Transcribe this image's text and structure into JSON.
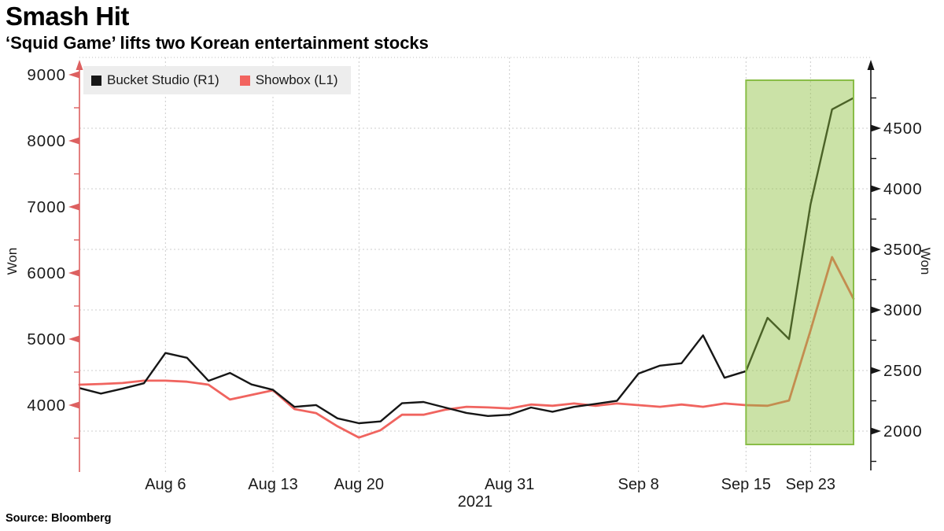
{
  "header": {
    "title": "Smash Hit",
    "subtitle": "‘Squid Game’ lifts two Korean entertainment stocks"
  },
  "source": "Source: Bloomberg",
  "legend": {
    "items": [
      {
        "label": "Bucket Studio (R1)",
        "color": "#161616"
      },
      {
        "label": "Showbox (L1)",
        "color": "#f2645f"
      }
    ]
  },
  "axes": {
    "left_label": "Won",
    "right_label": "Won",
    "year_label": "2021"
  },
  "colors": {
    "bucket_line": "#161616",
    "showbox_line": "#f0645f",
    "left_axis": "#dd6060",
    "right_axis": "#161616",
    "grid": "#cccccc",
    "frame_dotted": "#bdbdbd",
    "highlight_fill": "rgba(140,190,60,0.45)",
    "highlight_border": "#89bd47",
    "tick_text": "#1a1a1a",
    "legend_bg": "#ededed"
  },
  "chart_data": {
    "type": "line",
    "title": "Smash Hit",
    "subtitle": "‘Squid Game’ lifts two Korean entertainment stocks",
    "x": [
      "Aug 2",
      "Aug 3",
      "Aug 4",
      "Aug 5",
      "Aug 6",
      "Aug 9",
      "Aug 10",
      "Aug 11",
      "Aug 12",
      "Aug 13",
      "Aug 17",
      "Aug 18",
      "Aug 19",
      "Aug 20",
      "Aug 23",
      "Aug 24",
      "Aug 25",
      "Aug 26",
      "Aug 27",
      "Aug 30",
      "Aug 31",
      "Sep 1",
      "Sep 2",
      "Sep 3",
      "Sep 6",
      "Sep 7",
      "Sep 8",
      "Sep 9",
      "Sep 10",
      "Sep 13",
      "Sep 14",
      "Sep 15",
      "Sep 16",
      "Sep 17",
      "Sep 23",
      "Sep 24",
      "Sep 27"
    ],
    "year": "2021",
    "series": [
      {
        "name": "Bucket Studio (R1)",
        "axis": "right",
        "unit": "Won",
        "values": [
          2355,
          2310,
          2350,
          2395,
          2645,
          2605,
          2415,
          2480,
          2385,
          2340,
          2200,
          2215,
          2105,
          2065,
          2080,
          2230,
          2240,
          2195,
          2150,
          2125,
          2135,
          2195,
          2160,
          2200,
          2225,
          2250,
          2475,
          2540,
          2560,
          2790,
          2440,
          2495,
          2935,
          2760,
          3870,
          4655,
          4750
        ]
      },
      {
        "name": "Showbox (L1)",
        "axis": "left",
        "unit": "Won",
        "values": [
          4310,
          4320,
          4335,
          4370,
          4370,
          4355,
          4310,
          4085,
          4155,
          4225,
          3940,
          3880,
          3680,
          3510,
          3620,
          3855,
          3855,
          3930,
          3975,
          3965,
          3950,
          4010,
          3990,
          4025,
          3990,
          4025,
          4000,
          3975,
          4010,
          3975,
          4025,
          4000,
          3990,
          4070,
          5130,
          6240,
          5610
        ]
      }
    ],
    "left_axis": {
      "label": "Won",
      "ticks": [
        4000,
        5000,
        6000,
        7000,
        8000,
        9000
      ],
      "minor_ticks": [
        3500,
        4500,
        5500,
        6500,
        7500,
        8500
      ],
      "range": [
        2930,
        9120
      ]
    },
    "right_axis": {
      "label": "Won",
      "ticks": [
        2000,
        2500,
        3000,
        3500,
        4000,
        4500
      ],
      "minor_ticks": [
        1750,
        2250,
        2750,
        3250,
        3750,
        4250,
        4750
      ],
      "range": [
        1630,
        5010
      ]
    },
    "x_tick_labels": [
      {
        "label": "Aug 6",
        "index": 4
      },
      {
        "label": "Aug 13",
        "index": 9
      },
      {
        "label": "Aug 20",
        "index": 13
      },
      {
        "label": "Aug 31",
        "index": 20
      },
      {
        "label": "Sep 8",
        "index": 26
      },
      {
        "label": "Sep 15",
        "index": 31
      },
      {
        "label": "Sep 23",
        "index": 34
      }
    ],
    "grid": "dashed, horizontal at right-axis ticks, vertical at x ticks",
    "legend_position": "top-left inside plot",
    "highlight": {
      "from_index": 31,
      "to_index": 36,
      "from_label": "Sep 15",
      "to_label": "Sep 27"
    }
  }
}
